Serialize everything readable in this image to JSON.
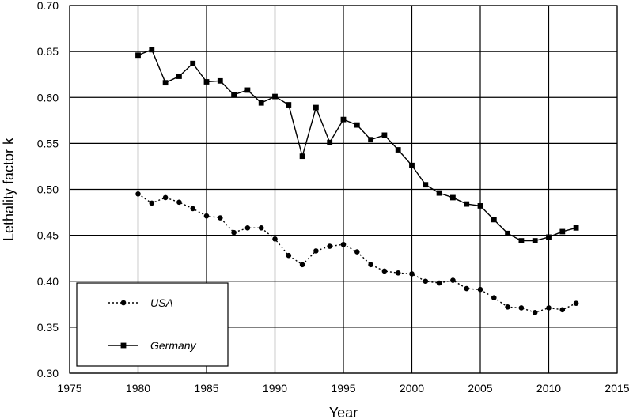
{
  "chart_data": {
    "type": "line",
    "title": "",
    "xlabel": "Year",
    "ylabel": "Lethality factor k",
    "xlim": [
      1975,
      2015
    ],
    "ylim": [
      0.3,
      0.7
    ],
    "x_ticks": [
      "1975",
      "1980",
      "1985",
      "1990",
      "1995",
      "2000",
      "2005",
      "2010",
      "2015"
    ],
    "y_ticks": [
      "0.30",
      "0.35",
      "0.40",
      "0.45",
      "0.50",
      "0.55",
      "0.60",
      "0.65",
      "0.70"
    ],
    "grid": true,
    "legend_position": "bottom-left",
    "x": [
      1980,
      1981,
      1982,
      1983,
      1984,
      1985,
      1986,
      1987,
      1988,
      1989,
      1990,
      1991,
      1992,
      1993,
      1994,
      1995,
      1996,
      1997,
      1998,
      1999,
      2000,
      2001,
      2002,
      2003,
      2004,
      2005,
      2006,
      2007,
      2008,
      2009,
      2010,
      2011,
      2012
    ],
    "series": [
      {
        "name": "USA",
        "marker": "circle",
        "line_style": "dotted",
        "values": [
          0.495,
          0.485,
          0.491,
          0.486,
          0.479,
          0.471,
          0.469,
          0.453,
          0.458,
          0.458,
          0.446,
          0.428,
          0.418,
          0.433,
          0.438,
          0.44,
          0.432,
          0.418,
          0.411,
          0.409,
          0.408,
          0.4,
          0.398,
          0.401,
          0.392,
          0.391,
          0.382,
          0.372,
          0.371,
          0.366,
          0.371,
          0.369,
          0.376
        ]
      },
      {
        "name": "Germany",
        "marker": "square",
        "line_style": "solid",
        "values": [
          0.646,
          0.652,
          0.616,
          0.623,
          0.637,
          0.617,
          0.618,
          0.603,
          0.608,
          0.594,
          0.601,
          0.592,
          0.536,
          0.589,
          0.551,
          0.576,
          0.57,
          0.554,
          0.559,
          0.543,
          0.526,
          0.505,
          0.496,
          0.491,
          0.484,
          0.482,
          0.467,
          0.452,
          0.444,
          0.444,
          0.448,
          0.454,
          0.458
        ]
      }
    ]
  }
}
